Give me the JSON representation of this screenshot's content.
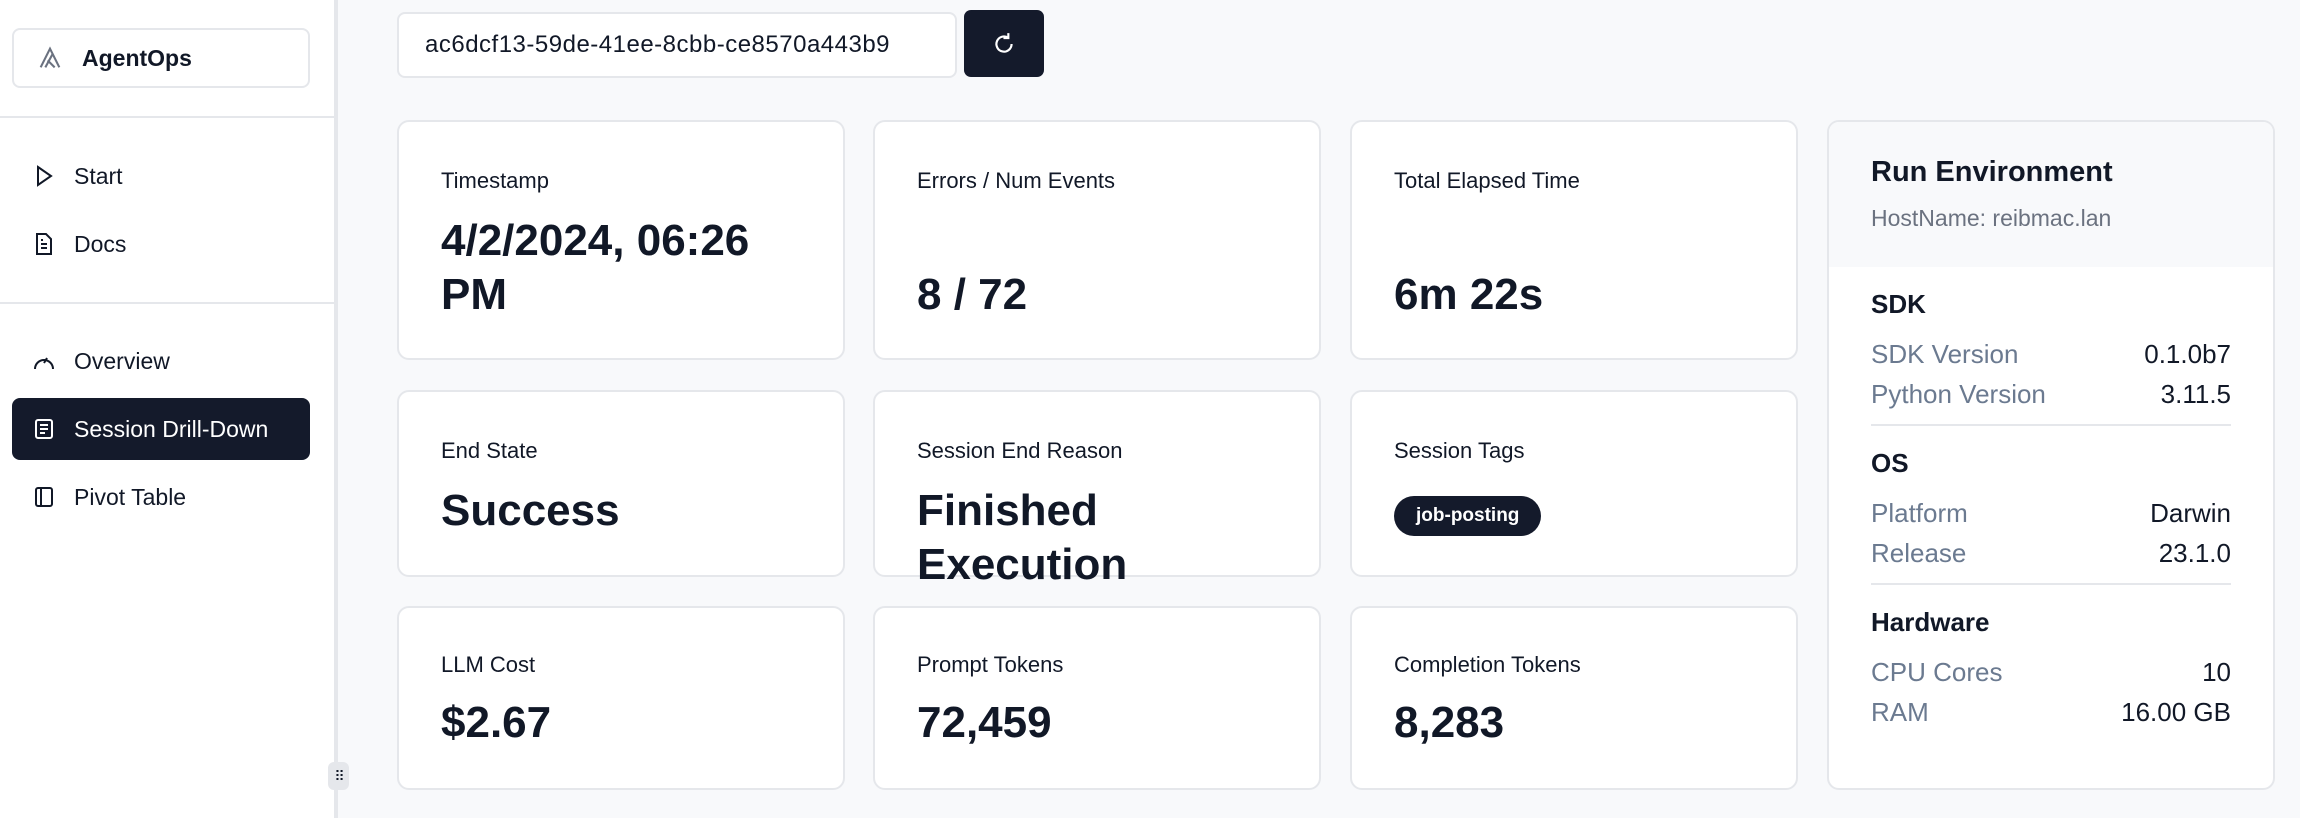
{
  "sidebar": {
    "brand": "AgentOps",
    "items": [
      {
        "label": "Start",
        "icon": "play-icon"
      },
      {
        "label": "Docs",
        "icon": "document-icon"
      },
      {
        "label": "Overview",
        "icon": "gauge-icon"
      },
      {
        "label": "Session Drill-Down",
        "icon": "list-icon",
        "active": true
      },
      {
        "label": "Pivot Table",
        "icon": "panel-icon"
      }
    ]
  },
  "session_input": {
    "value": "ac6dcf13-59de-41ee-8cbb-ce8570a443b9"
  },
  "cards": [
    {
      "label": "Timestamp",
      "value": "4/2/2024, 06:26 PM"
    },
    {
      "label": "Errors / Num Events",
      "value": "8 / 72"
    },
    {
      "label": "Total Elapsed Time",
      "value": "6m 22s"
    },
    {
      "label": "End State",
      "value": "Success"
    },
    {
      "label": "Session End Reason",
      "value": "Finished Execution"
    },
    {
      "label": "Session Tags",
      "tags": [
        "job-posting"
      ]
    },
    {
      "label": "LLM Cost",
      "value": "$2.67"
    },
    {
      "label": "Prompt Tokens",
      "value": "72,459"
    },
    {
      "label": "Completion Tokens",
      "value": "8,283"
    }
  ],
  "env": {
    "title": "Run Environment",
    "host": "HostName: reibmac.lan",
    "sections": [
      {
        "title": "SDK",
        "rows": [
          {
            "k": "SDK Version",
            "v": "0.1.0b7"
          },
          {
            "k": "Python Version",
            "v": "3.11.5"
          }
        ]
      },
      {
        "title": "OS",
        "rows": [
          {
            "k": "Platform",
            "v": "Darwin"
          },
          {
            "k": "Release",
            "v": "23.1.0"
          }
        ]
      },
      {
        "title": "Hardware",
        "rows": [
          {
            "k": "CPU Cores",
            "v": "10"
          },
          {
            "k": "RAM",
            "v": "16.00 GB"
          }
        ]
      }
    ]
  },
  "colors": {
    "primary": "#141a2b",
    "border": "#e5e7eb",
    "muted": "#6b7a90"
  }
}
